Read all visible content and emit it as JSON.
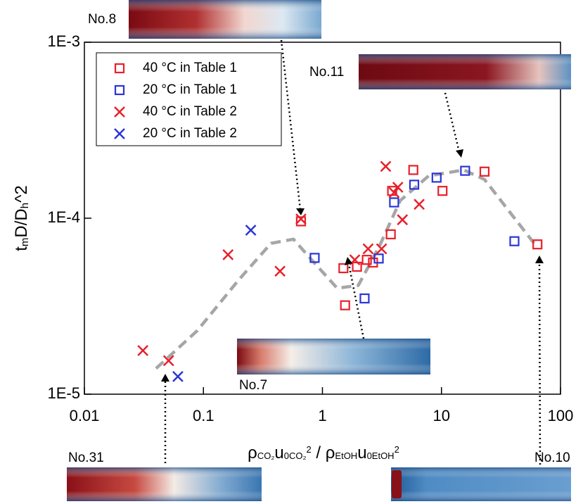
{
  "chart_data": {
    "type": "scatter",
    "log_x": true,
    "log_y": true,
    "xlim": [
      0.01,
      100
    ],
    "ylim": [
      1e-05,
      0.001
    ],
    "xticks": [
      0.01,
      0.1,
      1,
      10,
      100
    ],
    "yticks": [
      {
        "value": 1e-05,
        "label": "1E-5"
      },
      {
        "value": 0.0001,
        "label": "1E-4"
      },
      {
        "value": 0.001,
        "label": "1E-3"
      }
    ],
    "x_label": [
      "ρ",
      "CO₂",
      "u",
      "0CO₂",
      "2",
      " / ρ",
      "EtOH",
      "u",
      "0EtOH",
      "2"
    ],
    "y_label": [
      "t",
      "m",
      "D/D",
      "h",
      "^2"
    ],
    "legend": "top-left",
    "series": [
      {
        "name": "40 °C in Table 1",
        "color": "#e8202a",
        "marker": "square",
        "x": [
          0.66,
          1.5,
          1.55,
          1.95,
          2.36,
          2.66,
          3.75,
          3.85,
          5.8,
          10.2,
          23,
          64
        ],
        "values": [
          9.6e-05,
          5.2e-05,
          3.2e-05,
          5.3e-05,
          5.8e-05,
          5.6e-05,
          8.1e-05,
          0.000143,
          0.000188,
          0.000143,
          0.000184,
          7.1e-05
        ]
      },
      {
        "name": "20 °C in Table 1",
        "color": "#2a35d8",
        "marker": "square",
        "x": [
          0.86,
          2.26,
          2.97,
          4.0,
          5.9,
          9.1,
          15.8,
          41
        ],
        "values": [
          5.95e-05,
          3.5e-05,
          5.9e-05,
          0.000123,
          0.000155,
          0.00017,
          0.000186,
          7.4e-05
        ]
      },
      {
        "name": "40 °C in Table 2",
        "color": "#e8202a",
        "marker": "x",
        "x": [
          0.031,
          0.051,
          0.161,
          0.44,
          0.66,
          1.87,
          2.42,
          3.14,
          3.4,
          4.0,
          4.3,
          4.7,
          6.5
        ],
        "values": [
          1.77e-05,
          1.55e-05,
          6.2e-05,
          5e-05,
          9.9e-05,
          5.8e-05,
          6.7e-05,
          6.7e-05,
          0.000197,
          0.00014,
          0.00015,
          9.8e-05,
          0.00012
        ]
      },
      {
        "name": "20 °C in Table 2",
        "color": "#2a35d8",
        "marker": "x",
        "x": [
          0.061,
          0.25
        ],
        "values": [
          1.26e-05,
          8.55e-05
        ]
      }
    ],
    "trend": {
      "color": "#a6a6a6",
      "x": [
        0.04,
        0.089,
        0.2,
        0.37,
        0.57,
        0.83,
        1.33,
        2.0,
        3.0,
        4.5,
        7.8,
        15.4,
        23,
        35,
        60
      ],
      "values": [
        1.4e-05,
        2.3e-05,
        4.5e-05,
        7.2e-05,
        7.6e-05,
        5.7e-05,
        4e-05,
        4.15e-05,
        6.9e-05,
        0.000126,
        0.000174,
        0.000188,
        0.000166,
        0.000115,
        7.2e-05
      ]
    },
    "annotations": [
      "No.8",
      "No.11",
      "No.7",
      "No.31",
      "No.10"
    ]
  }
}
